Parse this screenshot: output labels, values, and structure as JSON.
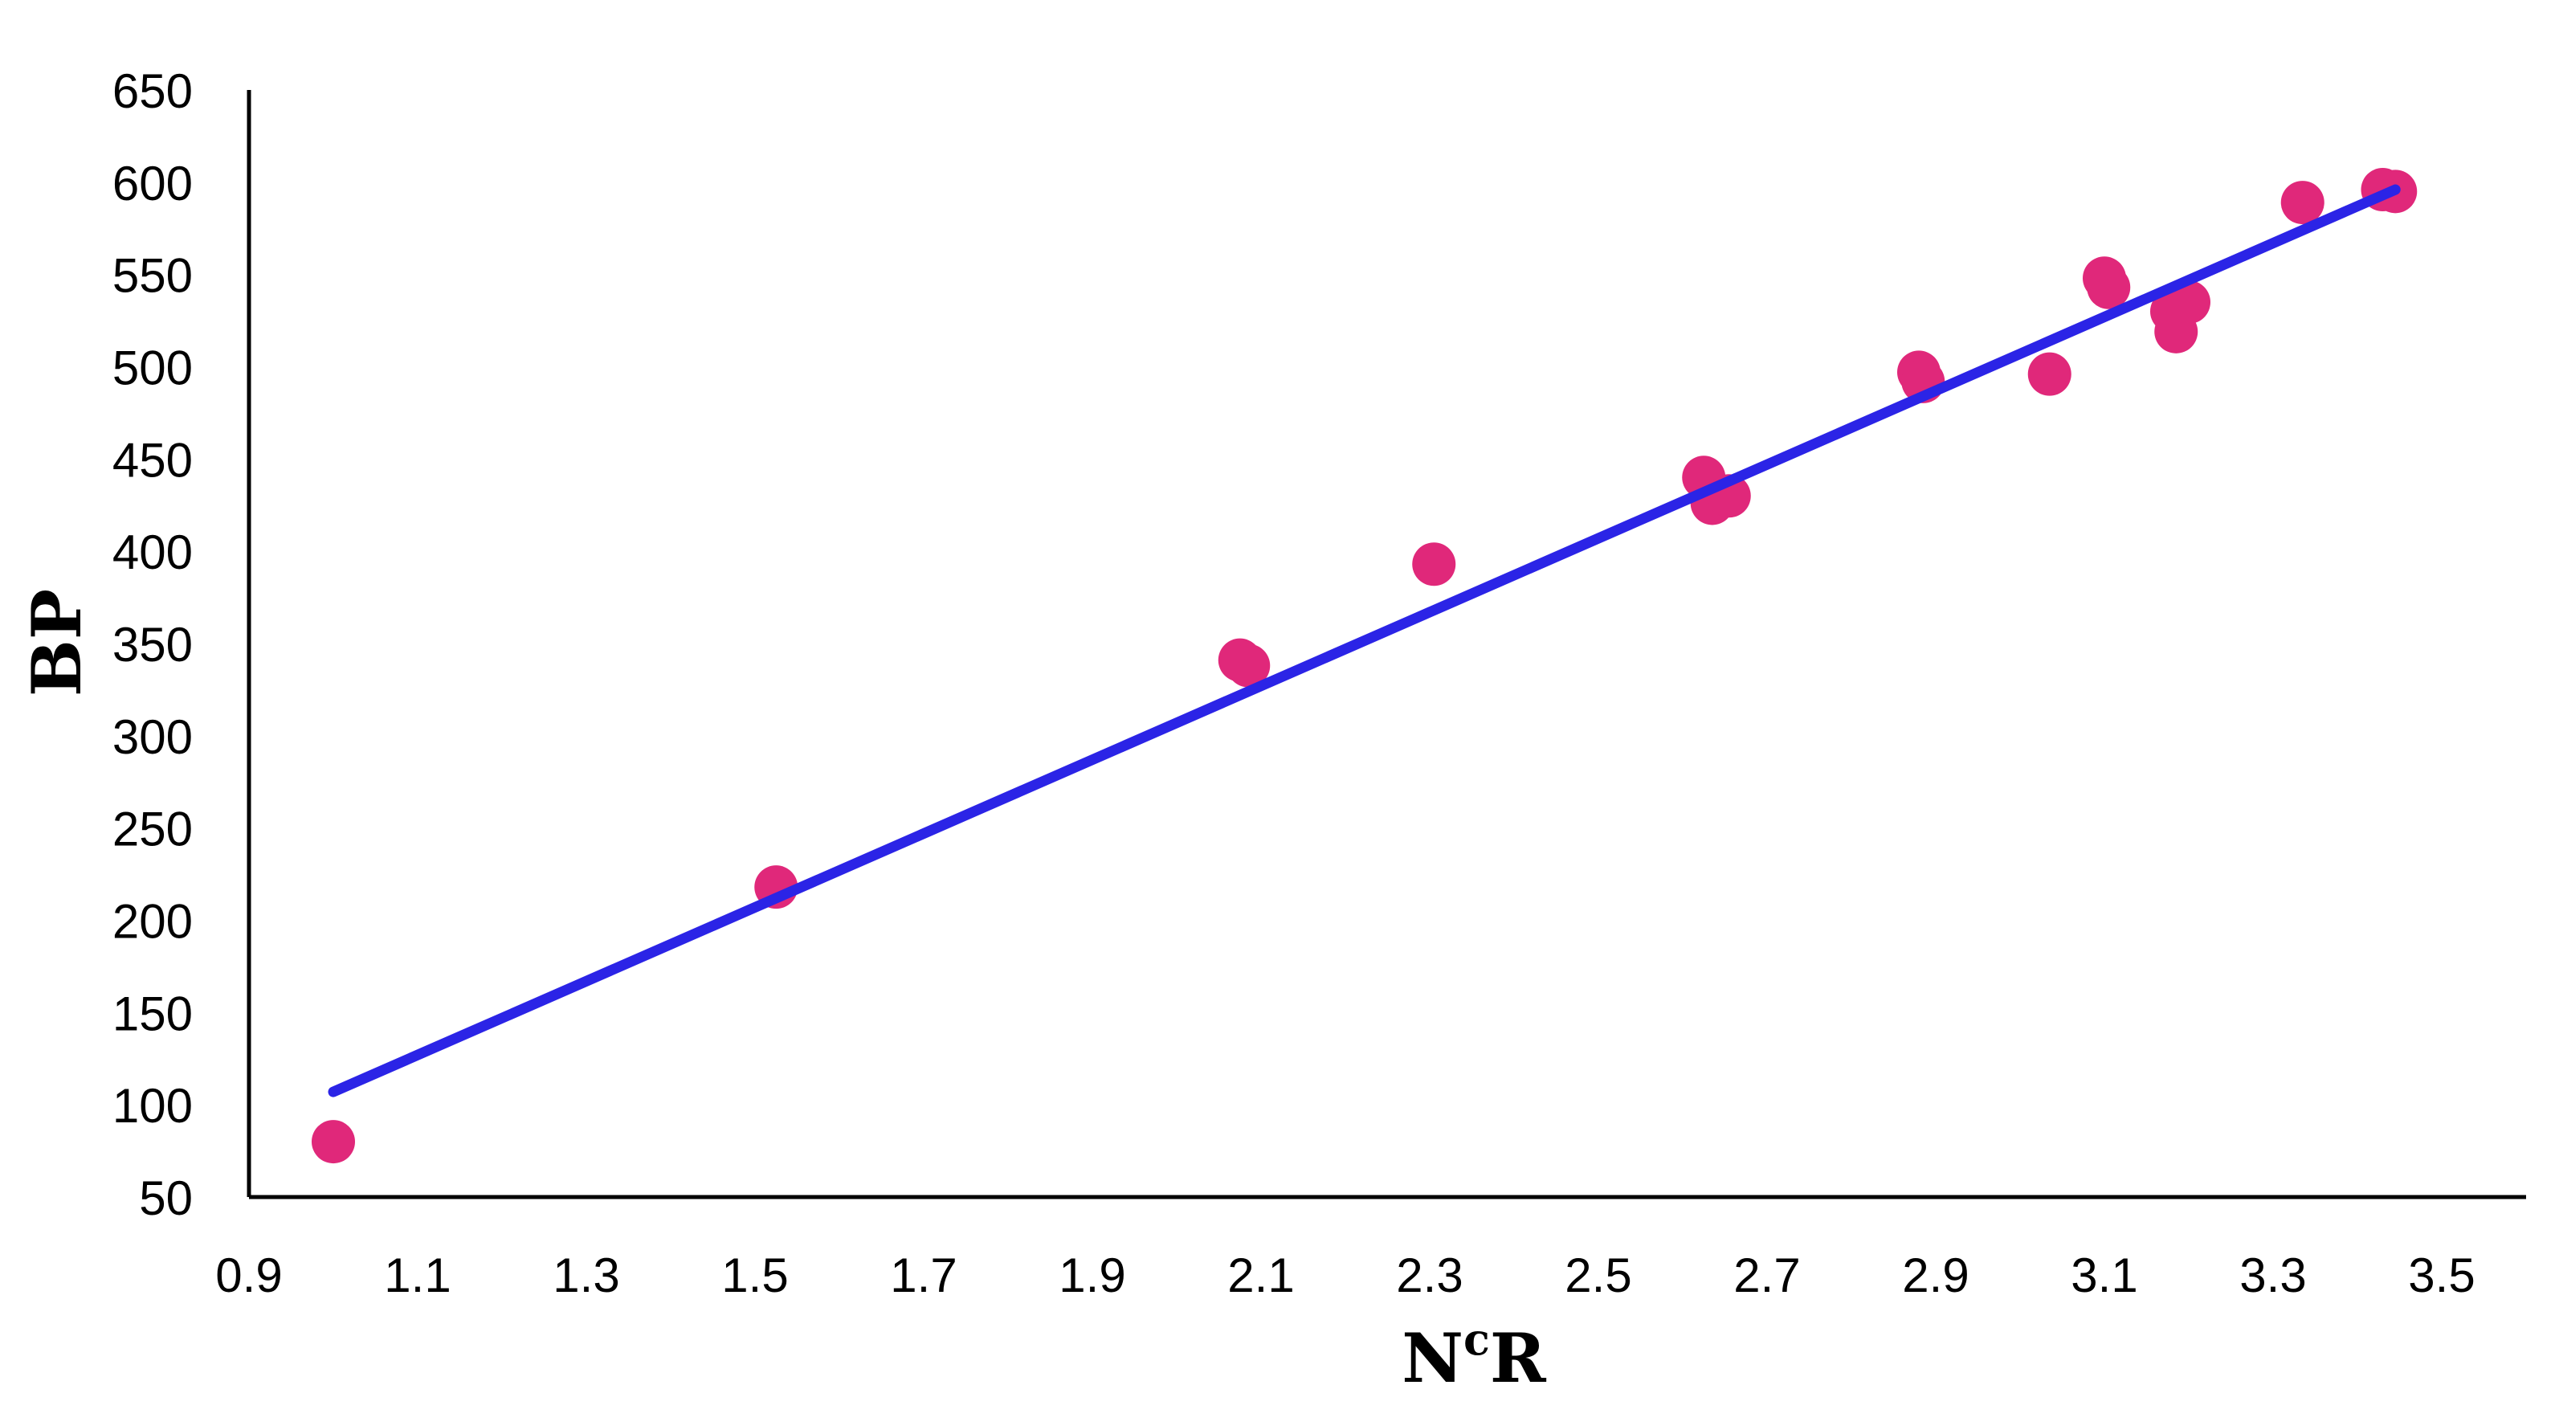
{
  "chart_data": {
    "type": "scatter",
    "xlabel": "N",
    "xlabel_superscript": "c",
    "xlabel_suffix": "R",
    "ylabel": "BP",
    "xlim": [
      0.9,
      3.6
    ],
    "ylim": [
      50,
      650
    ],
    "x_ticks": [
      "0.9",
      "1.1",
      "1.3",
      "1.5",
      "1.7",
      "1.9",
      "2.1",
      "2.3",
      "2.5",
      "2.7",
      "2.9",
      "3.1",
      "3.3",
      "3.5"
    ],
    "y_ticks": [
      "50",
      "100",
      "150",
      "200",
      "250",
      "300",
      "350",
      "400",
      "450",
      "500",
      "550",
      "600",
      "650"
    ],
    "grid": false,
    "legend": "none",
    "point_color": "#E0287A",
    "line_color": "#2B24E6",
    "points": [
      {
        "x": 1.0,
        "y": 80
      },
      {
        "x": 1.525,
        "y": 218
      },
      {
        "x": 2.075,
        "y": 341
      },
      {
        "x": 2.085,
        "y": 338
      },
      {
        "x": 2.305,
        "y": 393
      },
      {
        "x": 2.625,
        "y": 440
      },
      {
        "x": 2.635,
        "y": 426
      },
      {
        "x": 2.655,
        "y": 430
      },
      {
        "x": 2.88,
        "y": 497
      },
      {
        "x": 2.885,
        "y": 492
      },
      {
        "x": 3.035,
        "y": 496
      },
      {
        "x": 3.1,
        "y": 548
      },
      {
        "x": 3.105,
        "y": 543
      },
      {
        "x": 3.18,
        "y": 530
      },
      {
        "x": 3.185,
        "y": 519
      },
      {
        "x": 3.2,
        "y": 535
      },
      {
        "x": 3.335,
        "y": 589
      },
      {
        "x": 3.43,
        "y": 596
      },
      {
        "x": 3.445,
        "y": 595
      }
    ],
    "trendline": {
      "x": [
        1.0,
        3.445
      ],
      "y": [
        107,
        596
      ]
    }
  }
}
